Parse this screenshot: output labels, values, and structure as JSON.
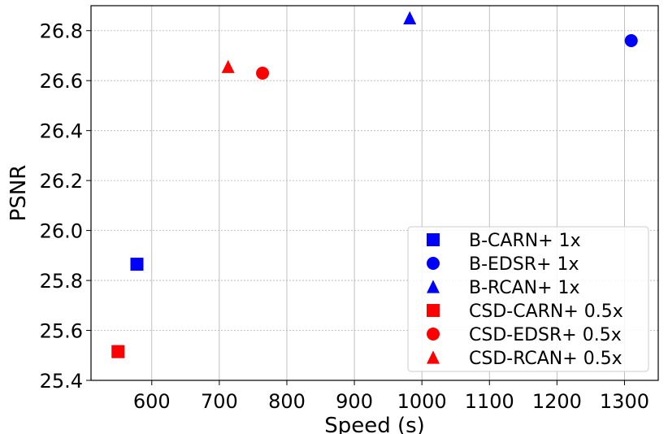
{
  "chart_data": {
    "type": "scatter",
    "xlabel": "Speed (s)",
    "ylabel": "PSNR",
    "xlim": [
      510,
      1350
    ],
    "ylim": [
      25.4,
      26.9
    ],
    "xticks": [
      600,
      700,
      800,
      900,
      1000,
      1100,
      1200,
      1300
    ],
    "yticks": [
      25.4,
      25.6,
      25.8,
      26.0,
      26.2,
      26.4,
      26.6,
      26.8
    ],
    "xtick_labels": [
      "600",
      "700",
      "800",
      "900",
      "1000",
      "1100",
      "1200",
      "1300"
    ],
    "ytick_labels": [
      "25.4",
      "25.6",
      "25.8",
      "26.0",
      "26.2",
      "26.4",
      "26.6",
      "26.8"
    ],
    "grid": true,
    "legend_position": "bottom-right",
    "colors": {
      "B": "#0000ff",
      "CSD": "#ff0000"
    },
    "series": [
      {
        "name": "B-CARN+ 1x",
        "marker": "square",
        "color": "#0000ff",
        "x": 578,
        "y": 25.865
      },
      {
        "name": "B-EDSR+ 1x",
        "marker": "circle",
        "color": "#0000ff",
        "x": 1310,
        "y": 26.76
      },
      {
        "name": "B-RCAN+ 1x",
        "marker": "triangle",
        "color": "#0000ff",
        "x": 982,
        "y": 26.85
      },
      {
        "name": "CSD-CARN+ 0.5x",
        "marker": "square",
        "color": "#ff0000",
        "x": 550,
        "y": 25.515
      },
      {
        "name": "CSD-EDSR+ 0.5x",
        "marker": "circle",
        "color": "#ff0000",
        "x": 764,
        "y": 26.63
      },
      {
        "name": "CSD-RCAN+ 0.5x",
        "marker": "triangle",
        "color": "#ff0000",
        "x": 713,
        "y": 26.655
      }
    ]
  }
}
